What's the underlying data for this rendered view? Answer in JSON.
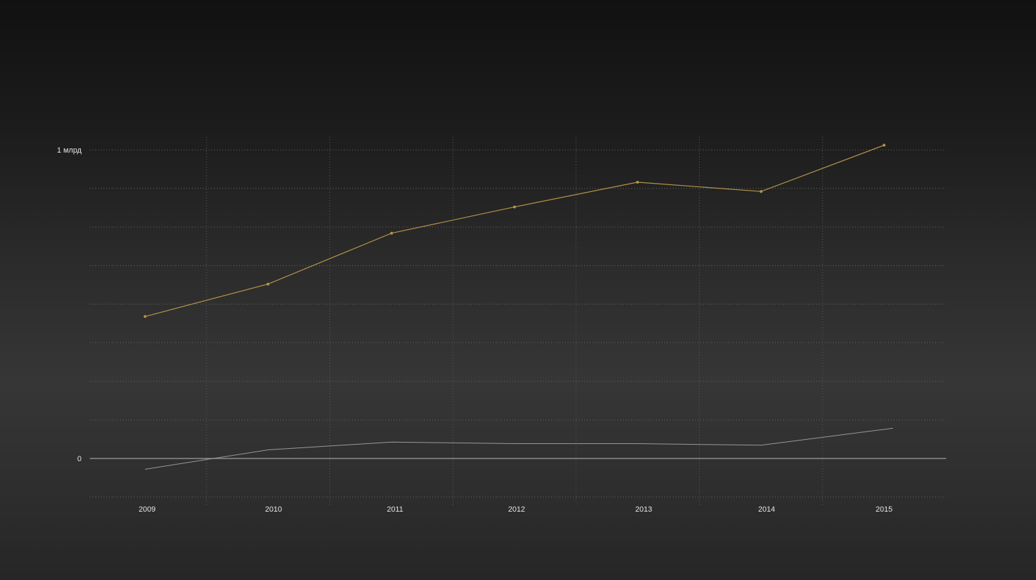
{
  "chart_data": {
    "type": "line",
    "x": [
      "2009",
      "2010",
      "2011",
      "2012",
      "2013",
      "2014",
      "2015"
    ],
    "y_tick_labels": {
      "zero": "0",
      "top": "1 млрд"
    },
    "ylim": [
      -0.122,
      1.0
    ],
    "grid": true,
    "series": [
      {
        "values": [
          0.46,
          0.565,
          0.73,
          0.815,
          0.895,
          0.865,
          1.015
        ],
        "color": "#b8954a",
        "markers": true
      },
      {
        "values": [
          -0.035,
          0.028,
          0.053,
          0.048,
          0.048,
          0.043,
          0.098
        ],
        "color": "#9a9a9a",
        "markers": false
      }
    ]
  }
}
